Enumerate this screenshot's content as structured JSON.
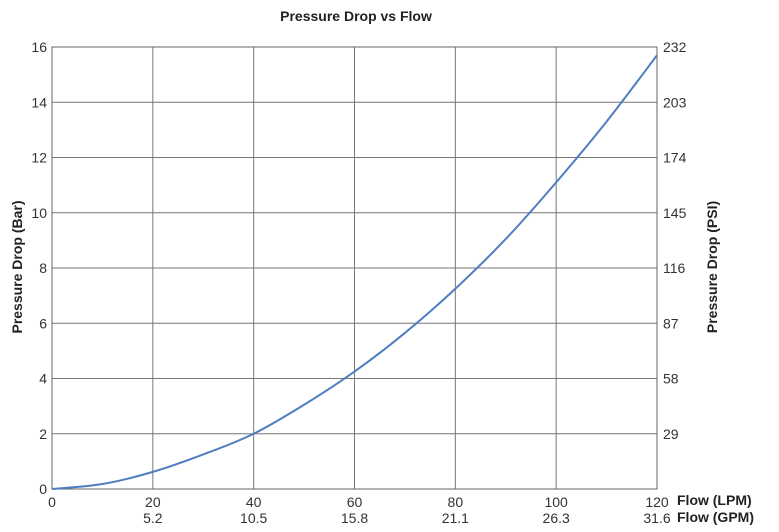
{
  "chart_data": {
    "type": "line",
    "title": "Pressure Drop vs Flow",
    "xlabel_primary": "Flow (LPM)",
    "xlabel_secondary": "Flow (GPM)",
    "ylabel_left": "Pressure Drop (Bar)",
    "ylabel_right": "Pressure Drop (PSI)",
    "xlim": [
      0,
      120
    ],
    "ylim": [
      0,
      16
    ],
    "grid": true,
    "x_ticks": [
      "0",
      "20",
      "40",
      "60",
      "80",
      "100",
      "120"
    ],
    "x_ticks_secondary": [
      "5.2",
      "10.5",
      "15.8",
      "21.1",
      "26.3",
      "31.6"
    ],
    "y_ticks_left": [
      "0",
      "2",
      "4",
      "6",
      "8",
      "10",
      "12",
      "14",
      "16"
    ],
    "y_ticks_right": [
      "29",
      "58",
      "87",
      "116",
      "145",
      "174",
      "203",
      "232"
    ],
    "line_color": "#4f7ec0",
    "series": [
      {
        "x": [
          0,
          10,
          20,
          30,
          40,
          50,
          60,
          70,
          80,
          90,
          100,
          110,
          120
        ],
        "y": [
          0,
          0.18,
          0.62,
          1.25,
          2.0,
          3.05,
          4.25,
          5.65,
          7.25,
          9.05,
          11.1,
          13.3,
          15.7
        ]
      }
    ]
  }
}
